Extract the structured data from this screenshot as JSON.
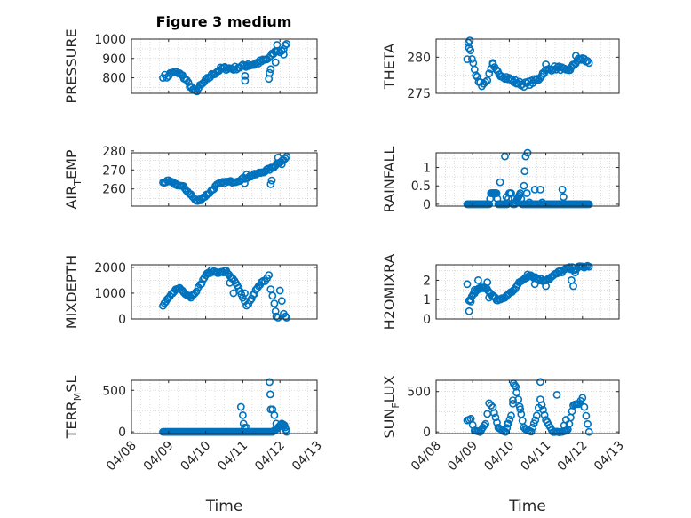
{
  "figure_title": "Figure 3 medium",
  "colors": {
    "marker": "#0072BD",
    "axes": "#262626",
    "grid": "#c8c8c8"
  },
  "chart_data": [
    {
      "type": "scatter",
      "ylabel_main": "PRESSURE",
      "ylabel_sub": "",
      "ylabel_tail": "",
      "ylim": [
        720,
        1000
      ],
      "yticks": [
        800,
        900,
        1000
      ],
      "xlim": [
        "04/08",
        "04/13"
      ],
      "segments": [
        {
          "t": 0.85,
          "v": 810
        },
        {
          "t": 0.95,
          "v": 805
        },
        {
          "t": 1.0,
          "v": 815
        },
        {
          "t": 1.12,
          "v": 830
        },
        {
          "t": 1.3,
          "v": 820
        },
        {
          "t": 1.45,
          "v": 795
        },
        {
          "t": 1.65,
          "v": 740
        },
        {
          "t": 1.72,
          "v": 728
        },
        {
          "t": 1.85,
          "v": 755
        },
        {
          "t": 2.0,
          "v": 785
        },
        {
          "t": 2.2,
          "v": 820
        },
        {
          "t": 2.4,
          "v": 845
        },
        {
          "t": 2.55,
          "v": 850
        },
        {
          "t": 2.75,
          "v": 848
        },
        {
          "t": 3.0,
          "v": 860
        },
        {
          "t": 3.3,
          "v": 870
        },
        {
          "t": 3.5,
          "v": 885
        },
        {
          "t": 3.65,
          "v": 895
        },
        {
          "t": 3.75,
          "v": 910
        },
        {
          "t": 3.9,
          "v": 940
        },
        {
          "t": 4.0,
          "v": 935
        },
        {
          "t": 4.1,
          "v": 950
        },
        {
          "t": 4.18,
          "v": 975
        }
      ],
      "outliers": [
        {
          "t": 3.06,
          "v": 785
        },
        {
          "t": 3.06,
          "v": 810
        },
        {
          "t": 3.14,
          "v": 870
        },
        {
          "t": 3.7,
          "v": 795
        },
        {
          "t": 3.72,
          "v": 825
        },
        {
          "t": 3.75,
          "v": 845
        },
        {
          "t": 3.88,
          "v": 880
        },
        {
          "t": 3.92,
          "v": 970
        },
        {
          "t": 4.1,
          "v": 920
        }
      ],
      "spread": 10,
      "density": 3
    },
    {
      "type": "scatter",
      "ylabel_main": "THETA",
      "ylabel_sub": "",
      "ylabel_tail": "",
      "ylim": [
        275,
        282.5
      ],
      "yticks": [
        275,
        280
      ],
      "xlim": [
        "04/08",
        "04/13"
      ],
      "segments": [
        {
          "t": 0.85,
          "v": 279.5
        },
        {
          "t": 0.9,
          "v": 281.5
        },
        {
          "t": 0.98,
          "v": 280
        },
        {
          "t": 1.05,
          "v": 278.5
        },
        {
          "t": 1.12,
          "v": 277
        },
        {
          "t": 1.25,
          "v": 276.2
        },
        {
          "t": 1.35,
          "v": 276.5
        },
        {
          "t": 1.45,
          "v": 277.5
        },
        {
          "t": 1.55,
          "v": 278.8
        },
        {
          "t": 1.65,
          "v": 278
        },
        {
          "t": 1.8,
          "v": 277.5
        },
        {
          "t": 2.0,
          "v": 277
        },
        {
          "t": 2.2,
          "v": 276.5
        },
        {
          "t": 2.4,
          "v": 276.2
        },
        {
          "t": 2.6,
          "v": 276.5
        },
        {
          "t": 2.8,
          "v": 277
        },
        {
          "t": 2.95,
          "v": 278
        },
        {
          "t": 3.2,
          "v": 278.5
        },
        {
          "t": 3.4,
          "v": 278.5
        },
        {
          "t": 3.55,
          "v": 278
        },
        {
          "t": 3.7,
          "v": 278.5
        },
        {
          "t": 3.85,
          "v": 279.5
        },
        {
          "t": 4.0,
          "v": 279.8
        },
        {
          "t": 4.18,
          "v": 279.2
        }
      ],
      "outliers": [
        {
          "t": 0.88,
          "v": 282
        },
        {
          "t": 0.92,
          "v": 282.3
        },
        {
          "t": 1.55,
          "v": 279.2
        },
        {
          "t": 3.0,
          "v": 279
        },
        {
          "t": 3.82,
          "v": 280.2
        }
      ],
      "spread": 0.3,
      "density": 3
    },
    {
      "type": "scatter",
      "ylabel_main": "AIR",
      "ylabel_sub": "T",
      "ylabel_tail": "EMP",
      "ylim": [
        251,
        279
      ],
      "yticks": [
        260,
        270,
        280
      ],
      "xlim": [
        "04/08",
        "04/13"
      ],
      "segments": [
        {
          "t": 0.85,
          "v": 263.5
        },
        {
          "t": 1.0,
          "v": 264
        },
        {
          "t": 1.2,
          "v": 262.5
        },
        {
          "t": 1.4,
          "v": 261
        },
        {
          "t": 1.6,
          "v": 257
        },
        {
          "t": 1.75,
          "v": 253.5
        },
        {
          "t": 1.9,
          "v": 255
        },
        {
          "t": 2.1,
          "v": 258
        },
        {
          "t": 2.3,
          "v": 262
        },
        {
          "t": 2.5,
          "v": 263.5
        },
        {
          "t": 2.8,
          "v": 264
        },
        {
          "t": 3.1,
          "v": 266
        },
        {
          "t": 3.4,
          "v": 268
        },
        {
          "t": 3.6,
          "v": 269.5
        },
        {
          "t": 3.8,
          "v": 271
        },
        {
          "t": 3.95,
          "v": 274
        },
        {
          "t": 4.1,
          "v": 275
        },
        {
          "t": 4.18,
          "v": 277
        }
      ],
      "outliers": [
        {
          "t": 3.05,
          "v": 263
        },
        {
          "t": 3.1,
          "v": 267.5
        },
        {
          "t": 3.75,
          "v": 262.5
        },
        {
          "t": 3.78,
          "v": 264.5
        },
        {
          "t": 3.95,
          "v": 276.5
        },
        {
          "t": 4.05,
          "v": 273
        }
      ],
      "spread": 0.6,
      "density": 3
    },
    {
      "type": "scatter",
      "ylabel_main": "RAINFALL",
      "ylabel_sub": "",
      "ylabel_tail": "",
      "ylim": [
        -0.05,
        1.4
      ],
      "yticks": [
        0,
        0.5,
        1
      ],
      "yticklabels": [
        "0",
        "0.5",
        "1"
      ],
      "xlim": [
        "04/08",
        "04/13"
      ],
      "segments": [
        {
          "t": 0.85,
          "v": 0
        },
        {
          "t": 1.45,
          "v": 0
        },
        {
          "t": 1.5,
          "v": 0.3
        },
        {
          "t": 1.65,
          "v": 0.3
        },
        {
          "t": 1.7,
          "v": 0
        },
        {
          "t": 1.95,
          "v": 0
        },
        {
          "t": 2.0,
          "v": 0.3
        },
        {
          "t": 2.05,
          "v": 0.3
        },
        {
          "t": 2.1,
          "v": 0
        },
        {
          "t": 2.15,
          "v": 0
        },
        {
          "t": 2.3,
          "v": 0.3
        },
        {
          "t": 2.35,
          "v": 0
        },
        {
          "t": 4.18,
          "v": 0
        }
      ],
      "outliers": [
        {
          "t": 1.62,
          "v": 0.3
        },
        {
          "t": 1.75,
          "v": 0.6
        },
        {
          "t": 1.88,
          "v": 1.3
        },
        {
          "t": 1.92,
          "v": 0.2
        },
        {
          "t": 2.4,
          "v": 0.5
        },
        {
          "t": 2.42,
          "v": 0.9
        },
        {
          "t": 2.45,
          "v": 1.3
        },
        {
          "t": 2.5,
          "v": 1.4
        },
        {
          "t": 2.48,
          "v": 0.3
        },
        {
          "t": 2.55,
          "v": 0.05
        },
        {
          "t": 2.7,
          "v": 0.4
        },
        {
          "t": 2.85,
          "v": 0.4
        },
        {
          "t": 2.9,
          "v": 0.05
        },
        {
          "t": 3.45,
          "v": 0.4
        },
        {
          "t": 3.48,
          "v": 0.2
        }
      ],
      "spread": 0,
      "density": 6
    },
    {
      "type": "scatter",
      "ylabel_main": "MIXDEPTH",
      "ylabel_sub": "",
      "ylabel_tail": "",
      "ylim": [
        0,
        2100
      ],
      "yticks": [
        0,
        1000,
        2000
      ],
      "xlim": [
        "04/08",
        "04/13"
      ],
      "segments": [
        {
          "t": 0.85,
          "v": 500
        },
        {
          "t": 1.0,
          "v": 800
        },
        {
          "t": 1.15,
          "v": 1100
        },
        {
          "t": 1.3,
          "v": 1200
        },
        {
          "t": 1.45,
          "v": 1000
        },
        {
          "t": 1.6,
          "v": 850
        },
        {
          "t": 1.75,
          "v": 1100
        },
        {
          "t": 1.85,
          "v": 1300
        },
        {
          "t": 2.0,
          "v": 1700
        },
        {
          "t": 2.15,
          "v": 1850
        },
        {
          "t": 2.4,
          "v": 1800
        },
        {
          "t": 2.55,
          "v": 1850
        },
        {
          "t": 2.7,
          "v": 1600
        },
        {
          "t": 2.85,
          "v": 1300
        },
        {
          "t": 3.0,
          "v": 800
        },
        {
          "t": 3.1,
          "v": 500
        },
        {
          "t": 3.2,
          "v": 700
        },
        {
          "t": 3.35,
          "v": 1100
        },
        {
          "t": 3.5,
          "v": 1400
        },
        {
          "t": 3.6,
          "v": 1500
        },
        {
          "t": 3.7,
          "v": 1700
        }
      ],
      "outliers": [
        {
          "t": 2.65,
          "v": 1400
        },
        {
          "t": 2.75,
          "v": 1000
        },
        {
          "t": 3.05,
          "v": 1000
        },
        {
          "t": 3.75,
          "v": 1150
        },
        {
          "t": 3.8,
          "v": 900
        },
        {
          "t": 3.85,
          "v": 600
        },
        {
          "t": 3.88,
          "v": 300
        },
        {
          "t": 3.9,
          "v": 100
        },
        {
          "t": 3.95,
          "v": 50
        },
        {
          "t": 4.0,
          "v": 1100
        },
        {
          "t": 4.05,
          "v": 700
        },
        {
          "t": 4.1,
          "v": 200
        },
        {
          "t": 4.15,
          "v": 100
        },
        {
          "t": 4.18,
          "v": 50
        }
      ],
      "spread": 40,
      "density": 3
    },
    {
      "type": "scatter",
      "ylabel_main": "H2OMIXRA",
      "ylabel_sub": "",
      "ylabel_tail": "",
      "ylim": [
        0,
        2.8
      ],
      "yticks": [
        0,
        1,
        2
      ],
      "xlim": [
        "04/08",
        "04/13"
      ],
      "segments": [
        {
          "t": 0.9,
          "v": 1.0
        },
        {
          "t": 1.05,
          "v": 1.3
        },
        {
          "t": 1.2,
          "v": 1.6
        },
        {
          "t": 1.35,
          "v": 1.6
        },
        {
          "t": 1.5,
          "v": 1.3
        },
        {
          "t": 1.65,
          "v": 1.0
        },
        {
          "t": 1.8,
          "v": 1.0
        },
        {
          "t": 2.0,
          "v": 1.3
        },
        {
          "t": 2.15,
          "v": 1.6
        },
        {
          "t": 2.35,
          "v": 2.0
        },
        {
          "t": 2.55,
          "v": 2.3
        },
        {
          "t": 2.75,
          "v": 2.1
        },
        {
          "t": 2.9,
          "v": 2.0
        },
        {
          "t": 3.1,
          "v": 2.1
        },
        {
          "t": 3.35,
          "v": 2.4
        },
        {
          "t": 3.6,
          "v": 2.6
        },
        {
          "t": 3.8,
          "v": 2.6
        },
        {
          "t": 4.0,
          "v": 2.7
        },
        {
          "t": 4.18,
          "v": 2.7
        }
      ],
      "outliers": [
        {
          "t": 0.85,
          "v": 1.8
        },
        {
          "t": 0.9,
          "v": 0.4
        },
        {
          "t": 0.95,
          "v": 0.9
        },
        {
          "t": 1.05,
          "v": 1.5
        },
        {
          "t": 1.15,
          "v": 2.0
        },
        {
          "t": 1.25,
          "v": 1.7
        },
        {
          "t": 1.4,
          "v": 1.9
        },
        {
          "t": 1.45,
          "v": 1.1
        },
        {
          "t": 2.5,
          "v": 2.3
        },
        {
          "t": 2.7,
          "v": 1.8
        },
        {
          "t": 2.85,
          "v": 2.1
        },
        {
          "t": 3.0,
          "v": 1.7
        },
        {
          "t": 3.7,
          "v": 2.0
        },
        {
          "t": 3.75,
          "v": 1.7
        },
        {
          "t": 3.8,
          "v": 2.4
        }
      ],
      "spread": 0.08,
      "density": 3
    },
    {
      "type": "scatter",
      "ylabel_main": "TERR",
      "ylabel_sub": "M",
      "ylabel_tail": "SL",
      "ylim": [
        -20,
        620
      ],
      "yticks": [
        0,
        500
      ],
      "xlim": [
        "04/08",
        "04/13"
      ],
      "xticks": [
        "04/08",
        "04/09",
        "04/10",
        "04/11",
        "04/12",
        "04/13"
      ],
      "xlabel": "Time",
      "segments": [
        {
          "t": 0.85,
          "v": 0
        },
        {
          "t": 3.1,
          "v": 0
        },
        {
          "t": 3.55,
          "v": 0
        },
        {
          "t": 3.8,
          "v": 0
        },
        {
          "t": 3.95,
          "v": 50
        },
        {
          "t": 4.05,
          "v": 100
        },
        {
          "t": 4.12,
          "v": 80
        },
        {
          "t": 4.18,
          "v": 0
        }
      ],
      "outliers": [
        {
          "t": 2.95,
          "v": 300
        },
        {
          "t": 3.0,
          "v": 200
        },
        {
          "t": 3.02,
          "v": 100
        },
        {
          "t": 3.05,
          "v": 50
        },
        {
          "t": 3.1,
          "v": 50
        },
        {
          "t": 3.72,
          "v": 600
        },
        {
          "t": 3.74,
          "v": 450
        },
        {
          "t": 3.75,
          "v": 270
        },
        {
          "t": 3.8,
          "v": 270
        },
        {
          "t": 3.85,
          "v": 200
        },
        {
          "t": 3.9,
          "v": 100
        }
      ],
      "spread": 0,
      "density": 6
    },
    {
      "type": "scatter",
      "ylabel_main": "SUN",
      "ylabel_sub": "F",
      "ylabel_tail": "LUX",
      "ylim": [
        -20,
        640
      ],
      "yticks": [
        0,
        500
      ],
      "xlim": [
        "04/08",
        "04/13"
      ],
      "xticks": [
        "04/08",
        "04/09",
        "04/10",
        "04/11",
        "04/12",
        "04/13"
      ],
      "xlabel": "Time",
      "segments": [
        {
          "t": 0.85,
          "v": 140
        },
        {
          "t": 0.95,
          "v": 160
        },
        {
          "t": 1.05,
          "v": 20
        },
        {
          "t": 1.2,
          "v": 0
        },
        {
          "t": 1.35,
          "v": 100
        },
        {
          "t": 1.45,
          "v": 350
        },
        {
          "t": 1.55,
          "v": 300
        },
        {
          "t": 1.7,
          "v": 50
        },
        {
          "t": 1.9,
          "v": 0
        },
        {
          "t": 2.05,
          "v": 200
        },
        {
          "t": 2.15,
          "v": 580
        },
        {
          "t": 2.25,
          "v": 400
        },
        {
          "t": 2.4,
          "v": 50
        },
        {
          "t": 2.6,
          "v": 0
        },
        {
          "t": 2.75,
          "v": 200
        },
        {
          "t": 2.85,
          "v": 400
        },
        {
          "t": 3.0,
          "v": 150
        },
        {
          "t": 3.2,
          "v": 0
        },
        {
          "t": 3.45,
          "v": 0
        },
        {
          "t": 3.6,
          "v": 30
        },
        {
          "t": 3.75,
          "v": 330
        },
        {
          "t": 3.9,
          "v": 350
        },
        {
          "t": 4.0,
          "v": 420
        },
        {
          "t": 4.1,
          "v": 200
        },
        {
          "t": 4.18,
          "v": 0
        }
      ],
      "outliers": [
        {
          "t": 2.12,
          "v": 600
        },
        {
          "t": 2.18,
          "v": 560
        },
        {
          "t": 2.1,
          "v": 350
        },
        {
          "t": 2.3,
          "v": 280
        },
        {
          "t": 2.85,
          "v": 620
        },
        {
          "t": 1.95,
          "v": 100
        },
        {
          "t": 3.3,
          "v": 460
        },
        {
          "t": 3.5,
          "v": 80
        },
        {
          "t": 3.55,
          "v": 150
        }
      ],
      "spread": 5,
      "density": 3
    }
  ]
}
